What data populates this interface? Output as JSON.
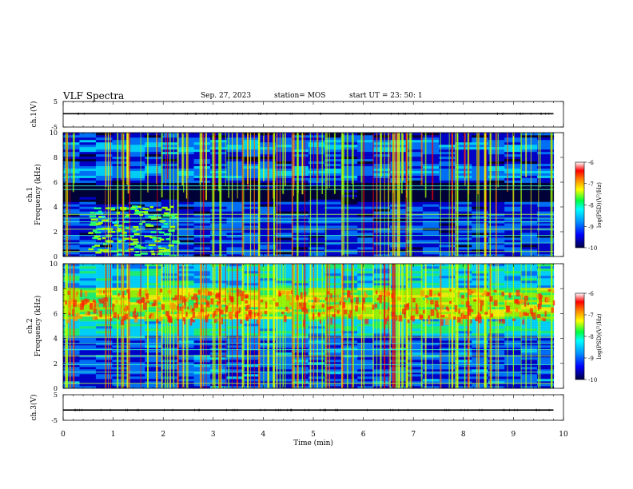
{
  "header": {
    "title": "VLF Spectra",
    "date": "Sep. 27, 2023",
    "station": "station= MOS",
    "start_ut": "start  UT  =   23: 50: 1"
  },
  "chart_data": [
    {
      "type": "line",
      "panel": "ch1-waveform",
      "ylabel": "ch.1(V)",
      "ylim": [
        -5,
        5
      ],
      "yticks": [
        "5",
        "-5"
      ],
      "series": [
        {
          "name": "ch.1",
          "x": [
            0,
            9.8
          ],
          "values": [
            0.2,
            0.2
          ]
        }
      ]
    },
    {
      "type": "heatmap",
      "panel": "ch1-spectrogram",
      "ylabel": "ch.1\nFrequency (kHz)",
      "ylim": [
        0,
        10
      ],
      "yticks": [
        "0",
        "2",
        "4",
        "6",
        "8",
        "10"
      ],
      "data_xlim": [
        0,
        9.8
      ],
      "hum_lines_khz": [
        0.4,
        1.1,
        1.7,
        2.2,
        2.8,
        3.1,
        3.4,
        5.4,
        5.7
      ],
      "burst_interval_min": [
        0.5,
        2.2
      ],
      "colorbar": {
        "label": "log(PSD)(V²/Hz)",
        "range": [
          -10,
          -6
        ],
        "ticks": [
          "-6",
          "-7",
          "-8",
          "-9",
          "-10"
        ]
      }
    },
    {
      "type": "heatmap",
      "panel": "ch2-spectrogram",
      "ylabel": "ch.2\nFrequency (kHz)",
      "ylim": [
        0,
        10
      ],
      "yticks": [
        "0",
        "2",
        "4",
        "6",
        "8",
        "10"
      ],
      "data_xlim": [
        0,
        9.8
      ],
      "intense_band_khz": [
        5.5,
        8.0
      ],
      "hum_lines_khz": [
        0.4,
        1.3,
        1.9,
        2.6,
        3.1,
        3.6,
        4.1
      ],
      "colorbar": {
        "label": "log(PSD)(V²/Hz)",
        "range": [
          -10,
          -6
        ],
        "ticks": [
          "-6",
          "-7",
          "-8",
          "-9",
          "-10"
        ]
      }
    },
    {
      "type": "line",
      "panel": "ch3-waveform",
      "ylabel": "ch.3(V)",
      "ylim": [
        -5,
        5
      ],
      "yticks": [
        "5",
        "-5"
      ],
      "series": [
        {
          "name": "ch.3",
          "x": [
            0,
            9.8
          ],
          "values": [
            -1.0,
            -1.0
          ]
        }
      ]
    }
  ],
  "xaxis": {
    "label": "Time  (min)",
    "range": [
      0,
      10
    ],
    "ticks": [
      "0",
      "1",
      "2",
      "3",
      "4",
      "5",
      "6",
      "7",
      "8",
      "9",
      "10"
    ]
  },
  "colors": {
    "scale": [
      "#000030",
      "#0000cc",
      "#0078ff",
      "#00e0ff",
      "#20ff70",
      "#a0ff00",
      "#ffff00",
      "#ff9000",
      "#ff0000",
      "#ffffff"
    ],
    "trace": "#000000"
  }
}
